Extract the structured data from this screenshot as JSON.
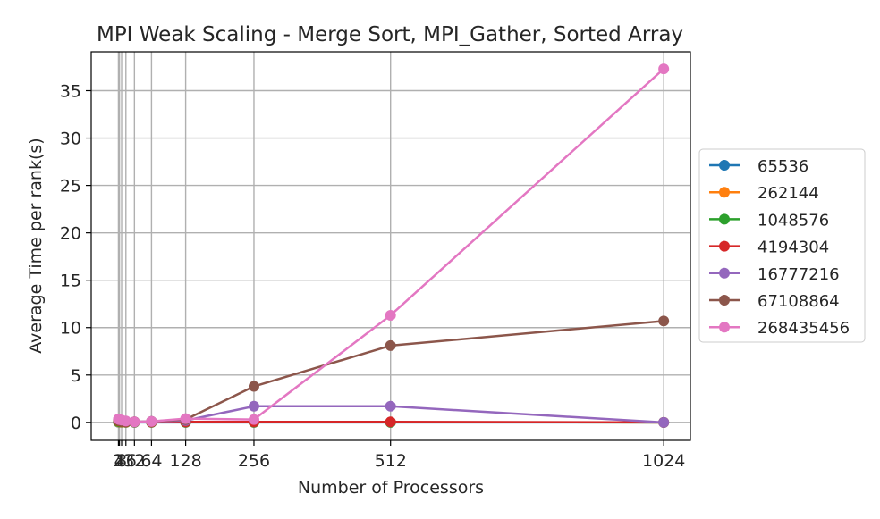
{
  "chart_data": {
    "type": "line",
    "title": "MPI Weak Scaling - Merge Sort, MPI_Gather, Sorted Array",
    "xlabel": "Number of Processors",
    "ylabel": "Average Time per rank(s)",
    "x": [
      2,
      4,
      8,
      16,
      32,
      64,
      128,
      256,
      512,
      1024
    ],
    "x_tick_labels": [
      "2",
      "4",
      "8",
      "16",
      "32",
      "64",
      "128",
      "256",
      "512",
      "1024"
    ],
    "xlim": [
      -49,
      1074
    ],
    "ylim": [
      -1.9,
      39.1
    ],
    "yticks": [
      0,
      5,
      10,
      15,
      20,
      25,
      30,
      35
    ],
    "grid": true,
    "legend_position": "center-right outside",
    "series": [
      {
        "name": "65536",
        "color": "#1f77b4",
        "values": [
          0.02,
          0.01,
          0.01,
          0.0,
          0.0,
          0.0,
          0.0,
          0.0,
          0.0,
          0.0
        ]
      },
      {
        "name": "262144",
        "color": "#ff7f0e",
        "values": [
          0.05,
          0.03,
          0.02,
          0.01,
          0.01,
          0.01,
          0.01,
          0.01,
          0.01,
          0.0
        ]
      },
      {
        "name": "1048576",
        "color": "#2ca02c",
        "values": [
          0.1,
          0.07,
          0.05,
          0.03,
          0.02,
          0.02,
          0.02,
          0.02,
          0.01,
          0.0
        ]
      },
      {
        "name": "4194304",
        "color": "#d62728",
        "values": [
          0.2,
          0.15,
          0.1,
          0.06,
          0.05,
          0.04,
          0.05,
          0.05,
          0.05,
          0.0
        ]
      },
      {
        "name": "16777216",
        "color": "#9467bd",
        "values": [
          0.3,
          0.25,
          0.2,
          0.1,
          0.05,
          0.1,
          0.2,
          1.7,
          1.7,
          0.0
        ]
      },
      {
        "name": "67108864",
        "color": "#8c564b",
        "values": [
          0.25,
          0.2,
          0.15,
          0.1,
          0.05,
          0.1,
          0.3,
          3.8,
          8.1,
          10.7
        ]
      },
      {
        "name": "268435456",
        "color": "#e377c2",
        "values": [
          0.35,
          0.3,
          0.25,
          0.15,
          0.05,
          0.1,
          0.4,
          0.3,
          11.3,
          37.3
        ]
      }
    ]
  }
}
